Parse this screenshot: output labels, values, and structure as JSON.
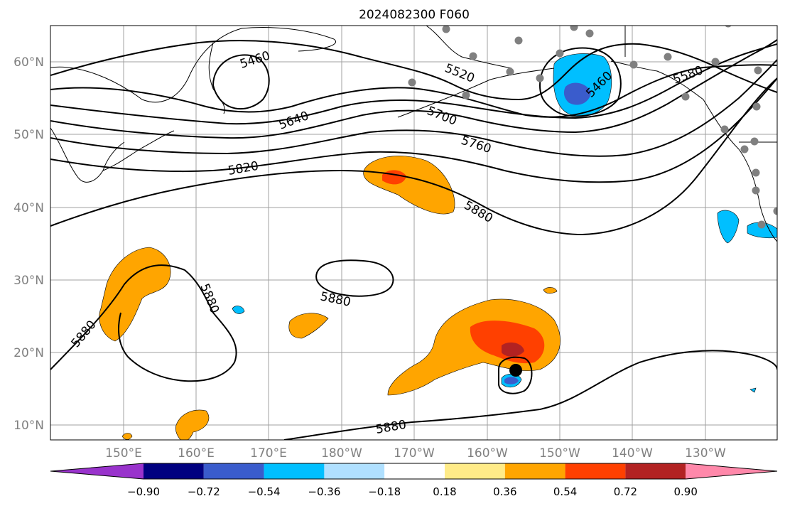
{
  "title": "2024082300 F060",
  "lat_ticks": [
    "60°N",
    "50°N",
    "40°N",
    "30°N",
    "20°N",
    "10°N"
  ],
  "lon_ticks": [
    "150°E",
    "160°E",
    "170°E",
    "180°W",
    "170°W",
    "160°W",
    "150°W",
    "140°W",
    "130°W"
  ],
  "contour_labels": [
    "5460",
    "5520",
    "5460",
    "5580",
    "5640",
    "5700",
    "5760",
    "5820",
    "5880",
    "5880",
    "5880",
    "5880",
    "5880"
  ],
  "colorbar": {
    "colors": [
      "#9933cc",
      "#000080",
      "#3a5ccc",
      "#00bfff",
      "#b0e0ff",
      "#ffffff",
      "#ffeb88",
      "#ffa500",
      "#ff4000",
      "#b22222",
      "#ff88aa"
    ],
    "labels": [
      "−0.90",
      "−0.72",
      "−0.54",
      "−0.36",
      "−0.18",
      "0.18",
      "0.36",
      "0.54",
      "0.72",
      "0.90"
    ]
  },
  "storm_marker": "black-dot",
  "station_marker": "gray-dot"
}
